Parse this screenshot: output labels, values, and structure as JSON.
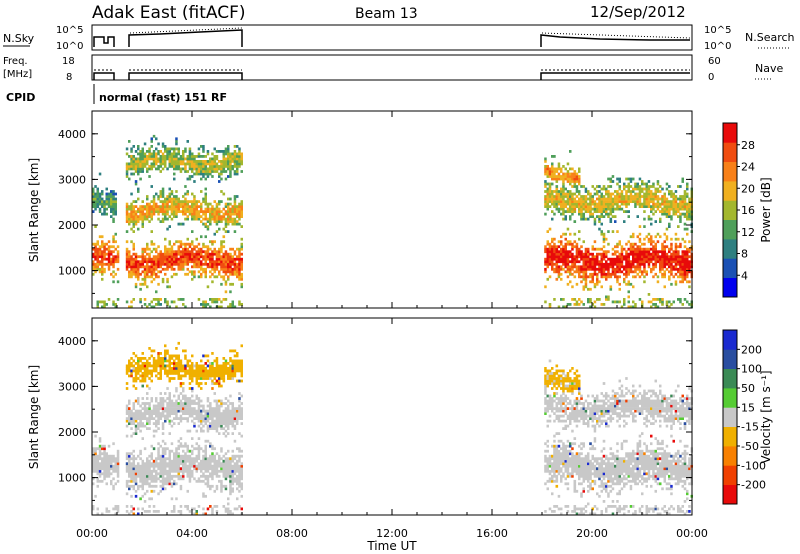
{
  "header": {
    "station": "Adak East (fitACF)",
    "beam": "Beam 13",
    "date": "12/Sep/2012"
  },
  "aux": {
    "nsky_label": "N.Sky",
    "nsearch_label": "N.Search",
    "freq_label_1": "Freq.",
    "freq_label_2": "[MHz]",
    "nave_label": "Nave",
    "cpid_label": "CPID",
    "cpid_value": "normal (fast) 151 RF",
    "noise_ticks_left": [
      "10^5",
      "10^0"
    ],
    "noise_ticks_right": [
      "10^5",
      "10^0"
    ],
    "freq_ticks_left": [
      "18",
      "8"
    ],
    "nave_ticks_right": [
      "60",
      "0"
    ]
  },
  "colors": {
    "frame": "#000000",
    "background": "#ffffff"
  },
  "chart_data": [
    {
      "type": "heatmap",
      "panel": "power",
      "x": [
        "00:00",
        "04:00",
        "08:00",
        "12:00",
        "16:00",
        "20:00",
        "00:00"
      ],
      "xlabel": "Time UT",
      "ylabel": "Slant Range [km]",
      "y_ticks": [
        "4000",
        "3000",
        "2000",
        "1000"
      ],
      "ylim": [
        180,
        4500
      ],
      "xlim_hours": [
        0,
        24
      ],
      "colorbar": {
        "label": "Power [dB]",
        "ticks": [
          "28",
          "24",
          "20",
          "16",
          "12",
          "8",
          "4"
        ],
        "range": [
          0,
          32
        ],
        "colors": [
          "#0000ee",
          "#1a50b4",
          "#2e7f80",
          "#4f9f5a",
          "#a3b72e",
          "#f0b020",
          "#f88018",
          "#f04c10",
          "#e80a0a"
        ]
      },
      "data_gaps_hours": [
        [
          1.05,
          1.35
        ],
        [
          6.0,
          18.0
        ]
      ],
      "bands": [
        {
          "t0": 0.0,
          "t1": 6.0,
          "range_center": 1200,
          "width": 340,
          "level": 26
        },
        {
          "t0": 1.35,
          "t1": 6.0,
          "range_center": 2300,
          "width": 280,
          "level": 20
        },
        {
          "t0": 0.0,
          "t1": 0.9,
          "range_center": 2500,
          "width": 240,
          "level": 12
        },
        {
          "t0": 1.0,
          "t1": 6.0,
          "range_center": 3350,
          "width": 260,
          "level": 16
        },
        {
          "t0": 18.0,
          "t1": 24.0,
          "range_center": 1200,
          "width": 380,
          "level": 29
        },
        {
          "t0": 18.0,
          "t1": 24.0,
          "range_center": 2500,
          "width": 320,
          "level": 18
        },
        {
          "t0": 18.0,
          "t1": 19.5,
          "range_center": 3100,
          "width": 200,
          "level": 22
        }
      ]
    },
    {
      "type": "heatmap",
      "panel": "velocity",
      "x": [
        "00:00",
        "04:00",
        "08:00",
        "12:00",
        "16:00",
        "20:00",
        "00:00"
      ],
      "xlabel": "Time UT",
      "ylabel": "Slant Range [km]",
      "y_ticks": [
        "4000",
        "3000",
        "2000",
        "1000"
      ],
      "ylim": [
        180,
        4500
      ],
      "xlim_hours": [
        0,
        24
      ],
      "colorbar": {
        "label": "Velocity [m s⁻¹]",
        "ticks": [
          "200",
          "100",
          "50",
          "15",
          "-15",
          "-50",
          "-100",
          "-200"
        ],
        "range": [
          -250,
          250
        ],
        "colors": [
          "#e80a0a",
          "#f04000",
          "#f88000",
          "#f0b000",
          "#c8c8c8",
          "#55cc33",
          "#3a8a55",
          "#2a4ea0",
          "#1a2ad0"
        ]
      },
      "data_gaps_hours": [
        [
          1.05,
          1.35
        ],
        [
          6.0,
          18.0
        ]
      ],
      "bands": [
        {
          "t0": 0.0,
          "t1": 6.0,
          "range_center": 1200,
          "width": 380,
          "level": 0
        },
        {
          "t0": 1.35,
          "t1": 6.0,
          "range_center": 2400,
          "width": 300,
          "level": 0
        },
        {
          "t0": 1.0,
          "t1": 6.0,
          "range_center": 3350,
          "width": 260,
          "level": -60
        },
        {
          "t0": 18.0,
          "t1": 24.0,
          "range_center": 1200,
          "width": 400,
          "level": 0
        },
        {
          "t0": 18.0,
          "t1": 24.0,
          "range_center": 2500,
          "width": 300,
          "level": 0
        },
        {
          "t0": 18.0,
          "t1": 19.5,
          "range_center": 3100,
          "width": 200,
          "level": -40
        }
      ]
    }
  ]
}
